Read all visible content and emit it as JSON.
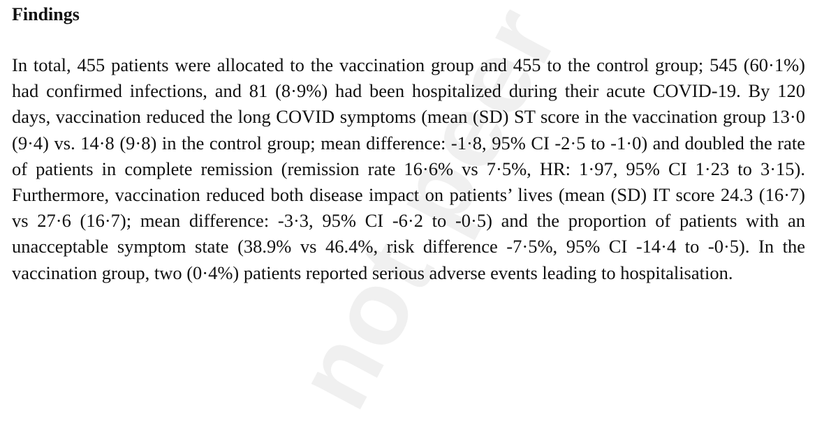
{
  "section": {
    "heading": "Findings",
    "paragraph": "In total, 455 patients were allocated to the vaccination group and 455 to the control group; 545 (60·1%) had confirmed infections, and 81 (8·9%) had been hospitalized during their acute COVID-19. By 120 days, vaccination reduced the long COVID symptoms (mean (SD) ST score in the vaccination group 13·0 (9·4) vs. 14·8 (9·8) in the control group; mean difference: -1·8, 95% CI -2·5 to -1·0) and doubled the rate of patients in complete remission (remission rate 16·6% vs 7·5%, HR: 1·97, 95% CI 1·23 to 3·15). Furthermore, vaccination reduced both disease impact on patients’ lives (mean (SD) IT score 24.3 (16·7) vs 27·6 (16·7); mean difference: -3·3, 95% CI -6·2 to -0·5) and the proportion of patients with an unacceptable symptom state (38.9% vs 46.4%, risk difference -7·5%, 95% CI -14·4 to -0·5). In the vaccination group, two (0·4%) patients reported serious adverse events leading to hospitalisation."
  },
  "watermark": {
    "text": "not peer"
  }
}
